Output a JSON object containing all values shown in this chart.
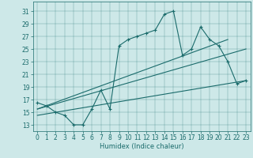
{
  "title": "",
  "xlabel": "Humidex (Indice chaleur)",
  "xlim": [
    -0.5,
    23.5
  ],
  "ylim": [
    12,
    32.5
  ],
  "yticks": [
    13,
    15,
    17,
    19,
    21,
    23,
    25,
    27,
    29,
    31
  ],
  "xticks": [
    0,
    1,
    2,
    3,
    4,
    5,
    6,
    7,
    8,
    9,
    10,
    11,
    12,
    13,
    14,
    15,
    16,
    17,
    18,
    19,
    20,
    21,
    22,
    23
  ],
  "background_color": "#cde8e8",
  "line_color": "#1a6b6b",
  "jagged_x": [
    0,
    1,
    2,
    3,
    4,
    5,
    6,
    7,
    8,
    9,
    10,
    11,
    12,
    13,
    14,
    15,
    16,
    17,
    18,
    19,
    20,
    21,
    22,
    23
  ],
  "jagged_y": [
    16.5,
    16.0,
    15.0,
    14.5,
    13.0,
    13.0,
    15.5,
    18.5,
    15.5,
    25.5,
    26.5,
    27.0,
    27.5,
    28.0,
    30.5,
    31.0,
    24.0,
    25.0,
    28.5,
    26.5,
    25.5,
    23.0,
    19.5,
    20.0
  ],
  "trend1_x": [
    0,
    23
  ],
  "trend1_y": [
    15.5,
    25.0
  ],
  "trend2_x": [
    0,
    23
  ],
  "trend2_y": [
    14.5,
    20.0
  ],
  "trend3_x": [
    0,
    21
  ],
  "trend3_y": [
    15.5,
    26.5
  ]
}
